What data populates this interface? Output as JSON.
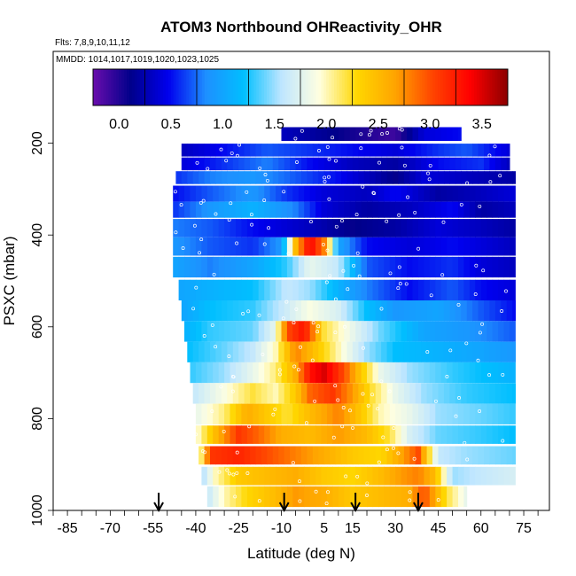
{
  "chart_data": {
    "type": "heatmap",
    "title": "ATOM3 Northbound OHReactivity_OHR",
    "subtitle_flights": "Flts: 7,8,9,10,11,12",
    "subtitle_dates": "MMDD: 1014,1017,1019,1020,1023,1025",
    "xlabel": "Latitude (deg N)",
    "ylabel": "PSXC (mbar)",
    "xlim": [
      -90,
      84
    ],
    "ylim": [
      1000,
      0
    ],
    "x_ticks": [
      -85,
      -70,
      -55,
      -40,
      -25,
      -10,
      5,
      15,
      30,
      45,
      60,
      75
    ],
    "y_ticks": [
      200,
      400,
      600,
      800,
      1000
    ],
    "colorbar": {
      "range": [
        -0.25,
        3.75
      ],
      "ticks": [
        0.0,
        0.5,
        1.0,
        1.5,
        2.0,
        2.5,
        3.0,
        3.5
      ],
      "colors": [
        "#6a0dad",
        "#00008b",
        "#0000ee",
        "#1e90ff",
        "#00bfff",
        "#bfe6ff",
        "#ffffe0",
        "#ffd700",
        "#ffa500",
        "#ff4500",
        "#ff0000",
        "#8b0000"
      ]
    },
    "flight_markers_lat": [
      -53,
      -9,
      16,
      38
    ],
    "rows": [
      {
        "p": 180,
        "dp": 30,
        "lat0": -10,
        "lat1": 53,
        "pts": [
          [
            -10,
            0.3
          ],
          [
            0,
            0.2
          ],
          [
            10,
            0.1
          ],
          [
            20,
            0.0
          ],
          [
            30,
            -0.1
          ],
          [
            40,
            0.4
          ],
          [
            53,
            0.5
          ]
        ]
      },
      {
        "p": 215,
        "dp": 28,
        "lat0": -45,
        "lat1": 70,
        "pts": [
          [
            -45,
            0.3
          ],
          [
            -30,
            0.5
          ],
          [
            -15,
            0.7
          ],
          [
            0,
            0.6
          ],
          [
            15,
            0.5
          ],
          [
            30,
            0.4
          ],
          [
            45,
            0.6
          ],
          [
            55,
            0.7
          ],
          [
            70,
            0.4
          ]
        ]
      },
      {
        "p": 245,
        "dp": 28,
        "lat0": -45,
        "lat1": 70,
        "pts": [
          [
            -45,
            0.4
          ],
          [
            -30,
            0.6
          ],
          [
            -15,
            0.8
          ],
          [
            0,
            0.5
          ],
          [
            15,
            0.3
          ],
          [
            30,
            0.2
          ],
          [
            45,
            0.5
          ],
          [
            60,
            0.6
          ],
          [
            70,
            0.3
          ]
        ]
      },
      {
        "p": 275,
        "dp": 28,
        "lat0": -47,
        "lat1": 72,
        "pts": [
          [
            -47,
            0.6
          ],
          [
            -35,
            0.8
          ],
          [
            -20,
            0.9
          ],
          [
            -5,
            0.7
          ],
          [
            10,
            0.5
          ],
          [
            20,
            0.3
          ],
          [
            30,
            0.1
          ],
          [
            40,
            0.4
          ],
          [
            55,
            0.3
          ],
          [
            72,
            0.2
          ]
        ]
      },
      {
        "p": 310,
        "dp": 35,
        "lat0": -48,
        "lat1": 72,
        "pts": [
          [
            -48,
            0.5
          ],
          [
            -35,
            0.7
          ],
          [
            -20,
            0.9
          ],
          [
            -8,
            0.6
          ],
          [
            5,
            0.4
          ],
          [
            20,
            0.3
          ],
          [
            30,
            0.5
          ],
          [
            45,
            0.2
          ],
          [
            60,
            0.3
          ],
          [
            72,
            0.4
          ]
        ]
      },
      {
        "p": 345,
        "dp": 35,
        "lat0": -48,
        "lat1": 72,
        "pts": [
          [
            -48,
            0.6
          ],
          [
            -35,
            0.9
          ],
          [
            -20,
            1.1
          ],
          [
            -5,
            0.8
          ],
          [
            5,
            0.4
          ],
          [
            20,
            0.2
          ],
          [
            35,
            0.3
          ],
          [
            50,
            0.5
          ],
          [
            60,
            0.2
          ],
          [
            72,
            0.3
          ]
        ]
      },
      {
        "p": 385,
        "dp": 40,
        "lat0": -48,
        "lat1": 72,
        "pts": [
          [
            -48,
            0.8
          ],
          [
            -35,
            0.7
          ],
          [
            -20,
            0.5
          ],
          [
            -10,
            0.4
          ],
          [
            0,
            0.3
          ],
          [
            15,
            0.1
          ],
          [
            30,
            0.2
          ],
          [
            45,
            0.4
          ],
          [
            60,
            0.3
          ],
          [
            72,
            0.2
          ]
        ]
      },
      {
        "p": 425,
        "dp": 40,
        "lat0": -48,
        "lat1": 72,
        "pts": [
          [
            -48,
            0.9
          ],
          [
            -35,
            0.7
          ],
          [
            -20,
            0.6
          ],
          [
            -10,
            0.9
          ],
          [
            -5,
            2.5
          ],
          [
            0,
            3.4
          ],
          [
            5,
            2.8
          ],
          [
            10,
            1.0
          ],
          [
            20,
            0.5
          ],
          [
            35,
            0.4
          ],
          [
            50,
            0.5
          ],
          [
            72,
            0.3
          ]
        ]
      },
      {
        "p": 470,
        "dp": 45,
        "lat0": -48,
        "lat1": 72,
        "pts": [
          [
            -48,
            1.0
          ],
          [
            -35,
            0.8
          ],
          [
            -20,
            1.0
          ],
          [
            -8,
            1.3
          ],
          [
            0,
            1.8
          ],
          [
            10,
            1.6
          ],
          [
            20,
            0.7
          ],
          [
            35,
            0.5
          ],
          [
            50,
            0.6
          ],
          [
            60,
            0.4
          ],
          [
            72,
            0.3
          ]
        ]
      },
      {
        "p": 520,
        "dp": 45,
        "lat0": -46,
        "lat1": 72,
        "pts": [
          [
            -46,
            1.0
          ],
          [
            -35,
            1.1
          ],
          [
            -20,
            1.2
          ],
          [
            -8,
            1.6
          ],
          [
            0,
            1.5
          ],
          [
            10,
            1.1
          ],
          [
            20,
            0.8
          ],
          [
            35,
            0.5
          ],
          [
            50,
            0.7
          ],
          [
            60,
            0.5
          ],
          [
            72,
            0.4
          ]
        ]
      },
      {
        "p": 565,
        "dp": 45,
        "lat0": -45,
        "lat1": 72,
        "pts": [
          [
            -45,
            1.0
          ],
          [
            -35,
            1.2
          ],
          [
            -20,
            1.3
          ],
          [
            -10,
            1.6
          ],
          [
            0,
            1.9
          ],
          [
            10,
            1.7
          ],
          [
            20,
            1.2
          ],
          [
            30,
            0.9
          ],
          [
            45,
            1.0
          ],
          [
            60,
            0.7
          ],
          [
            72,
            0.5
          ]
        ]
      },
      {
        "p": 610,
        "dp": 45,
        "lat0": -44,
        "lat1": 72,
        "pts": [
          [
            -44,
            1.1
          ],
          [
            -35,
            1.3
          ],
          [
            -20,
            1.4
          ],
          [
            -12,
            1.8
          ],
          [
            -8,
            3.0
          ],
          [
            -2,
            3.3
          ],
          [
            5,
            2.2
          ],
          [
            15,
            1.8
          ],
          [
            25,
            1.4
          ],
          [
            40,
            1.0
          ],
          [
            55,
            0.9
          ],
          [
            72,
            0.7
          ]
        ]
      },
      {
        "p": 655,
        "dp": 45,
        "lat0": -43,
        "lat1": 72,
        "pts": [
          [
            -43,
            1.2
          ],
          [
            -30,
            1.4
          ],
          [
            -20,
            1.6
          ],
          [
            -12,
            2.0
          ],
          [
            -5,
            2.8
          ],
          [
            3,
            2.4
          ],
          [
            12,
            1.9
          ],
          [
            20,
            1.5
          ],
          [
            30,
            1.2
          ],
          [
            45,
            1.1
          ],
          [
            60,
            1.0
          ],
          [
            72,
            0.9
          ]
        ]
      },
      {
        "p": 700,
        "dp": 45,
        "lat0": -42,
        "lat1": 72,
        "pts": [
          [
            -42,
            1.3
          ],
          [
            -30,
            1.5
          ],
          [
            -20,
            1.8
          ],
          [
            -12,
            2.1
          ],
          [
            -5,
            2.6
          ],
          [
            0,
            3.3
          ],
          [
            5,
            3.5
          ],
          [
            12,
            3.0
          ],
          [
            18,
            2.4
          ],
          [
            25,
            1.8
          ],
          [
            35,
            1.5
          ],
          [
            50,
            1.3
          ],
          [
            72,
            1.1
          ]
        ]
      },
      {
        "p": 745,
        "dp": 45,
        "lat0": -41,
        "lat1": 72,
        "pts": [
          [
            -41,
            1.6
          ],
          [
            -30,
            1.9
          ],
          [
            -20,
            2.2
          ],
          [
            -12,
            2.0
          ],
          [
            -5,
            2.4
          ],
          [
            0,
            2.9
          ],
          [
            8,
            3.1
          ],
          [
            15,
            2.7
          ],
          [
            22,
            2.2
          ],
          [
            30,
            1.8
          ],
          [
            40,
            1.5
          ],
          [
            55,
            1.3
          ],
          [
            72,
            1.2
          ]
        ]
      },
      {
        "p": 790,
        "dp": 45,
        "lat0": -40,
        "lat1": 72,
        "pts": [
          [
            -40,
            1.8
          ],
          [
            -30,
            2.1
          ],
          [
            -22,
            2.6
          ],
          [
            -15,
            2.4
          ],
          [
            -8,
            2.2
          ],
          [
            0,
            2.5
          ],
          [
            10,
            2.8
          ],
          [
            18,
            2.4
          ],
          [
            25,
            2.0
          ],
          [
            35,
            1.8
          ],
          [
            45,
            1.5
          ],
          [
            60,
            1.4
          ],
          [
            72,
            1.3
          ]
        ]
      },
      {
        "p": 835,
        "dp": 40,
        "lat0": -40,
        "lat1": 72,
        "pts": [
          [
            -40,
            1.9
          ],
          [
            -32,
            2.6
          ],
          [
            -25,
            3.1
          ],
          [
            -18,
            2.9
          ],
          [
            -10,
            2.6
          ],
          [
            0,
            2.5
          ],
          [
            10,
            2.7
          ],
          [
            20,
            2.5
          ],
          [
            28,
            2.2
          ],
          [
            35,
            1.7
          ],
          [
            45,
            1.4
          ],
          [
            60,
            1.3
          ],
          [
            72,
            1.2
          ]
        ]
      },
      {
        "p": 880,
        "dp": 40,
        "lat0": -39,
        "lat1": 72,
        "pts": [
          [
            -39,
            1.8
          ],
          [
            -35,
            3.1
          ],
          [
            -25,
            3.2
          ],
          [
            -15,
            3.0
          ],
          [
            -5,
            2.8
          ],
          [
            5,
            2.6
          ],
          [
            15,
            2.4
          ],
          [
            25,
            2.3
          ],
          [
            33,
            2.7
          ],
          [
            38,
            3.0
          ],
          [
            45,
            1.6
          ],
          [
            55,
            1.5
          ],
          [
            72,
            1.4
          ]
        ]
      },
      {
        "p": 925,
        "dp": 40,
        "lat0": -38,
        "lat1": 72,
        "pts": [
          [
            -38,
            1.5
          ],
          [
            -33,
            2.0
          ],
          [
            -25,
            2.4
          ],
          [
            -15,
            2.5
          ],
          [
            -5,
            2.6
          ],
          [
            5,
            2.4
          ],
          [
            15,
            2.3
          ],
          [
            25,
            2.5
          ],
          [
            32,
            2.7
          ],
          [
            38,
            2.8
          ],
          [
            44,
            2.5
          ],
          [
            50,
            1.5
          ],
          [
            60,
            1.6
          ],
          [
            72,
            1.7
          ]
        ]
      },
      {
        "p": 970,
        "dp": 45,
        "lat0": -36,
        "lat1": 55,
        "pts": [
          [
            -36,
            1.6
          ],
          [
            -30,
            2.0
          ],
          [
            -22,
            2.3
          ],
          [
            -12,
            2.5
          ],
          [
            -5,
            2.7
          ],
          [
            5,
            2.6
          ],
          [
            15,
            2.4
          ],
          [
            25,
            2.5
          ],
          [
            35,
            2.6
          ],
          [
            40,
            3.0
          ],
          [
            48,
            2.2
          ],
          [
            55,
            1.8
          ]
        ]
      }
    ]
  }
}
